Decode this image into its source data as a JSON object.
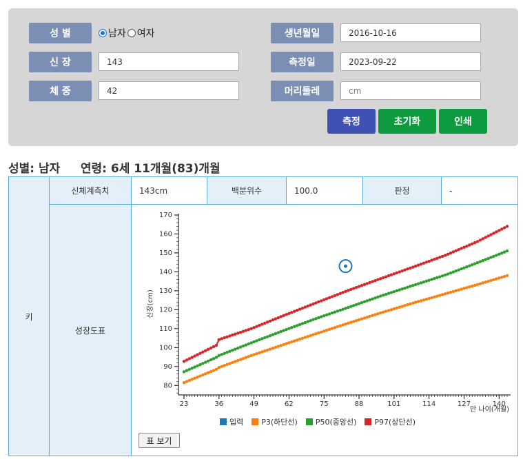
{
  "form": {
    "gender_label": "성 별",
    "gender_male": "남자",
    "gender_female": "여자",
    "height_label": "신 장",
    "height_value": "143",
    "weight_label": "체 중",
    "weight_value": "42",
    "birth_label": "생년월일",
    "birth_value": "2016-10-16",
    "measure_date_label": "측정일",
    "measure_date_value": "2023-09-22",
    "head_label": "머리둘레",
    "head_placeholder": "cm",
    "btn_measure": "측정",
    "btn_reset": "초기화",
    "btn_print": "인쇄"
  },
  "summary": "성별: 남자     연령: 6세 11개월(83)개월",
  "result": {
    "row_label": "키",
    "measure_label": "신체계측치",
    "measure_value": "143cm",
    "percentile_label": "백분위수",
    "percentile_value": "100.0",
    "judgement_label": "판정",
    "judgement_value": "-",
    "chart_label": "성장도표",
    "table_button": "표 보기"
  },
  "colors": {
    "input": "#1f77b4",
    "p3": "#ff7f0e",
    "p50": "#2ca02c",
    "p97": "#d62728",
    "button_blue": "#3f51b5",
    "button_green": "#0e9a3e"
  },
  "chart_data": {
    "type": "line",
    "xlabel": "만 나이(개월)",
    "ylabel": "신장(cm)",
    "xlim": [
      23,
      143
    ],
    "ylim": [
      75,
      170
    ],
    "xticks": [
      23,
      36,
      49,
      62,
      75,
      88,
      101,
      114,
      127,
      140
    ],
    "yticks": [
      80,
      90,
      100,
      110,
      120,
      130,
      140,
      150,
      160,
      170
    ],
    "legend": [
      "입력",
      "P3(하단선)",
      "P50(중앙선)",
      "P97(상단선)"
    ],
    "input_point": {
      "x": 83,
      "y": 143
    },
    "series": [
      {
        "name": "P3(하단선)",
        "points": [
          [
            23,
            81.5
          ],
          [
            35,
            88.5
          ],
          [
            36,
            89.5
          ],
          [
            48,
            95.8
          ],
          [
            60,
            101.6
          ],
          [
            72,
            107.3
          ],
          [
            84,
            112.9
          ],
          [
            96,
            118.3
          ],
          [
            108,
            123.5
          ],
          [
            120,
            128.4
          ],
          [
            132,
            133.3
          ],
          [
            143,
            138.0
          ]
        ]
      },
      {
        "name": "P50(중앙선)",
        "points": [
          [
            23,
            87.2
          ],
          [
            35,
            94.8
          ],
          [
            36,
            95.8
          ],
          [
            48,
            102.5
          ],
          [
            60,
            109.0
          ],
          [
            72,
            115.3
          ],
          [
            84,
            121.2
          ],
          [
            96,
            127.2
          ],
          [
            108,
            132.8
          ],
          [
            120,
            138.3
          ],
          [
            132,
            144.8
          ],
          [
            143,
            151.0
          ]
        ]
      },
      {
        "name": "P97(상단선)",
        "points": [
          [
            23,
            92.7
          ],
          [
            35,
            101.2
          ],
          [
            36,
            104.2
          ],
          [
            48,
            110.0
          ],
          [
            60,
            116.9
          ],
          [
            72,
            123.6
          ],
          [
            84,
            130.2
          ],
          [
            96,
            136.4
          ],
          [
            108,
            142.5
          ],
          [
            120,
            148.7
          ],
          [
            132,
            156.0
          ],
          [
            143,
            164.0
          ]
        ]
      }
    ]
  }
}
